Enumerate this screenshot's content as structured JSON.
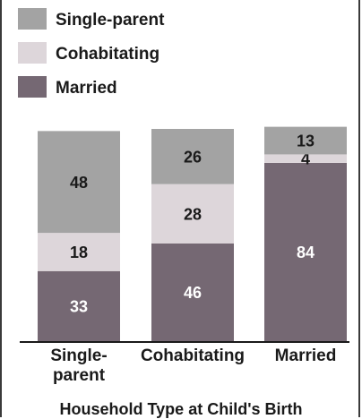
{
  "chart_data": {
    "type": "bar",
    "stacked": true,
    "categories": [
      "Single-\nparent",
      "Cohabitating",
      "Married"
    ],
    "series": [
      {
        "name": "Married",
        "values": [
          33,
          46,
          84
        ],
        "color": "#756873",
        "label_color": "#ffffff"
      },
      {
        "name": "Cohabitating",
        "values": [
          18,
          28,
          4
        ],
        "color": "#ddd6da",
        "label_color": "#1a1a1a"
      },
      {
        "name": "Single-parent",
        "values": [
          48,
          26,
          13
        ],
        "color": "#a3a3a3",
        "label_color": "#1a1a1a"
      }
    ],
    "legend_order": [
      "Single-parent",
      "Cohabitating",
      "Married"
    ],
    "legend_position": "top-left",
    "xlabel": "Household Type at Child's Birth",
    "ylabel": "",
    "ylim": [
      0,
      100
    ],
    "grid": false
  }
}
